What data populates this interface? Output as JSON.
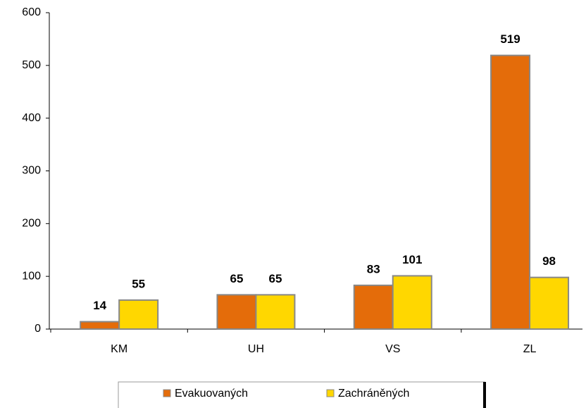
{
  "chart_data": {
    "type": "bar",
    "categories": [
      "KM",
      "UH",
      "VS",
      "ZL"
    ],
    "series": [
      {
        "name": "Evakuovaných",
        "color": "#e46c0a",
        "values": [
          14,
          65,
          83,
          519
        ]
      },
      {
        "name": "Zachráněných",
        "color": "#ffd700",
        "values": [
          55,
          65,
          101,
          98
        ]
      }
    ],
    "ylim": [
      0,
      600
    ],
    "yticks": [
      0,
      100,
      200,
      300,
      400,
      500,
      600
    ],
    "grid": false,
    "legend": "bottom"
  }
}
